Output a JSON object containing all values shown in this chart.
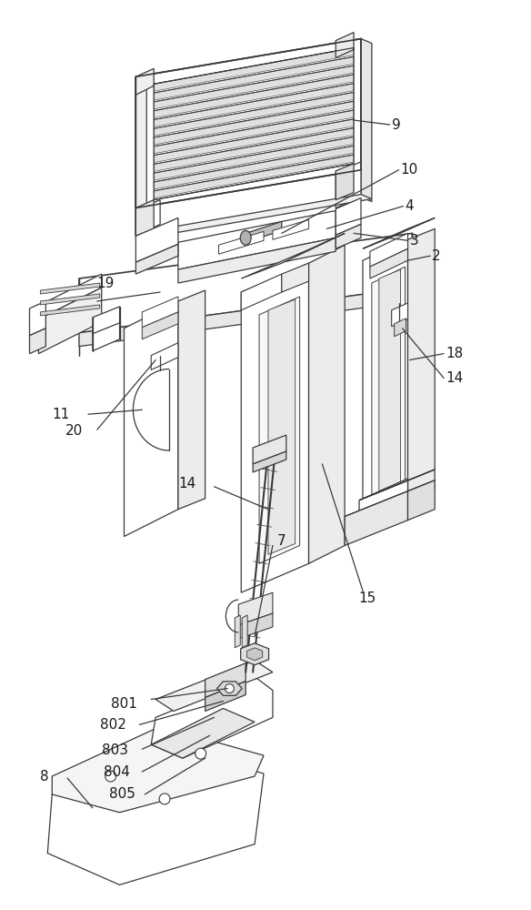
{
  "bg_color": "#ffffff",
  "line_color": "#3a3a3a",
  "lw": 0.9,
  "lw_thick": 1.2,
  "lw_thin": 0.5,
  "figsize": [
    5.84,
    10.0
  ],
  "dpi": 100,
  "label_fontsize": 11,
  "label_color": "#1a1a1a"
}
